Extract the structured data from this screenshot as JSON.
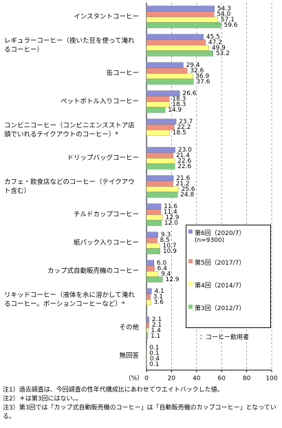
{
  "chart_data": {
    "type": "bar",
    "categories": [
      "インスタントコーヒー",
      "レギュラーコーヒー（挽いた豆を使って淹れるコーヒー）",
      "缶コーヒー",
      "ペットボトル入りコーヒー",
      "コンビニコーヒー（コンビニエンスストア店頭でいれるテイクアウトのコーヒー）*",
      "ドリップバッグコーヒー",
      "カフェ・飲食店などのコーヒー（テイクアウト含む）",
      "チルドカップコーヒー",
      "紙パック入りコーヒー",
      "カップ式自動販売機のコーヒー",
      "リキッドコーヒー（液体を水に溶かして淹れるコーヒー。ポーションコーヒーなど）*",
      "その他",
      "無回答"
    ],
    "series": [
      {
        "name": "第6回（2020/7）",
        "color": "#8b8fd8",
        "values": [
          54.3,
          45.5,
          29.4,
          26.6,
          23.7,
          23.0,
          21.6,
          11.6,
          9.3,
          6.0,
          4.1,
          2.1,
          0.1
        ],
        "value_labels": [
          "54.3",
          "45.5",
          "29.4",
          "26.6",
          "23.7",
          "23.0",
          "21.6",
          "11.6",
          "9.3",
          "6.0",
          "4.1",
          "2.1",
          "0.1"
        ]
      },
      {
        "name": "第5回（2017/7）",
        "color": "#f0907e",
        "values": [
          54.0,
          47.2,
          32.6,
          18.3,
          22.2,
          21.4,
          21.2,
          11.4,
          8.5,
          6.4,
          3.1,
          2.1,
          0.1
        ],
        "value_labels": [
          "54.0",
          "47.2",
          "32.6",
          "18.3",
          "22.2",
          "21.4",
          "21.2",
          "11.4",
          "8.5",
          "6.4",
          "3.1",
          "2.1",
          "0.1"
        ]
      },
      {
        "name": "第4回（2014/7）",
        "color": "#ffff80",
        "values": [
          57.1,
          49.9,
          36.9,
          18.3,
          18.5,
          22.6,
          25.6,
          12.9,
          10.7,
          9.4,
          3.6,
          1.4,
          0.4
        ],
        "value_labels": [
          "57.1",
          "49.9",
          "36.9",
          "18.3",
          "18.5",
          "22.6",
          "25.6",
          "12.9",
          "10.7",
          "9.4",
          "3.6",
          "1.4",
          "0.4"
        ]
      },
      {
        "name": "第3回（2012/7）",
        "color": "#80cc80",
        "values": [
          59.6,
          53.2,
          37.6,
          14.9,
          null,
          22.6,
          24.8,
          12.0,
          10.9,
          12.9,
          null,
          1.1,
          0.1
        ],
        "value_labels": [
          "59.6",
          "53.2",
          "37.6",
          "14.9",
          null,
          "22.6",
          "24.8",
          "12.0",
          "10.9",
          "12.9",
          null,
          "1.1",
          "0.1"
        ]
      }
    ],
    "legend_note": "(n=9300)",
    "base_note": "：コーヒー飲用者",
    "x_label": "（%）",
    "xlim": [
      0,
      100
    ],
    "xticks": [
      0,
      20,
      40,
      60,
      80,
      100
    ],
    "grid": true,
    "notes": [
      "注1）過去調査は、今回調査の性年代構成比にあわせてウエイトバックした値。",
      "注2）＊は第3回にはない。。",
      "注3）第3回では「カップ式自動販売機のコーヒー」は「自動販売機のカップコーヒー」となっている。"
    ]
  }
}
